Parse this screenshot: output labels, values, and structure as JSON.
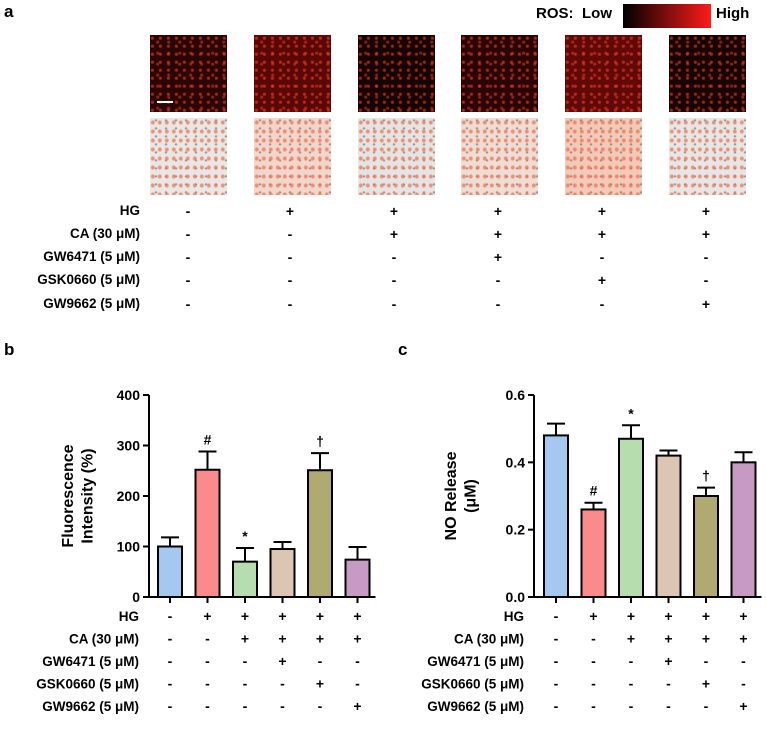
{
  "panel_a": {
    "letter": "a",
    "legend": {
      "title": "ROS:",
      "low": "Low",
      "high": "High"
    },
    "treatment_rows": [
      {
        "label": "HG",
        "signs": [
          "-",
          "+",
          "+",
          "+",
          "+",
          "+"
        ]
      },
      {
        "label": "CA (30 μM)",
        "signs": [
          "-",
          "-",
          "+",
          "+",
          "+",
          "+"
        ]
      },
      {
        "label": "GW6471 (5 μM)",
        "signs": [
          "-",
          "-",
          "-",
          "+",
          "-",
          "-"
        ]
      },
      {
        "label": "GSK0660 (5 μM)",
        "signs": [
          "-",
          "-",
          "-",
          "-",
          "+",
          "-"
        ]
      },
      {
        "label": "GW9662 (5 μM)",
        "signs": [
          "-",
          "-",
          "-",
          "-",
          "-",
          "+"
        ]
      }
    ],
    "colors": {
      "legend_low": "#000000",
      "legend_high": "#ff1a1a"
    }
  },
  "chart_data": [
    {
      "type": "bar",
      "panel": "b",
      "ylabel": "Fluorescence Intensity (%)",
      "ylim": [
        0,
        400
      ],
      "yticks": [
        "0",
        "100",
        "200",
        "300",
        "400"
      ],
      "values": [
        100,
        252,
        70,
        95,
        251,
        74
      ],
      "errors": [
        18,
        36,
        27,
        14,
        34,
        25
      ],
      "annotations": [
        "",
        "#",
        "*",
        "",
        "†",
        ""
      ],
      "colors": [
        "#a4c8f0",
        "#fb8a8d",
        "#b5ddae",
        "#dcc5b3",
        "#b0aa72",
        "#c79ac4"
      ],
      "treatment_rows": [
        {
          "label": "HG",
          "signs": [
            "-",
            "+",
            "+",
            "+",
            "+",
            "+"
          ]
        },
        {
          "label": "CA (30 μM)",
          "signs": [
            "-",
            "-",
            "+",
            "+",
            "+",
            "+"
          ]
        },
        {
          "label": "GW6471 (5 μM)",
          "signs": [
            "-",
            "-",
            "-",
            "+",
            "-",
            "-"
          ]
        },
        {
          "label": "GSK0660 (5 μM)",
          "signs": [
            "-",
            "-",
            "-",
            "-",
            "+",
            "-"
          ]
        },
        {
          "label": "GW9662 (5 μM)",
          "signs": [
            "-",
            "-",
            "-",
            "-",
            "-",
            "+"
          ]
        }
      ]
    },
    {
      "type": "bar",
      "panel": "c",
      "ylabel": "NO Release (μM)",
      "ylim": [
        0,
        0.6
      ],
      "yticks": [
        "0.0",
        "0.2",
        "0.4",
        "0.6"
      ],
      "values": [
        0.48,
        0.26,
        0.47,
        0.42,
        0.3,
        0.4
      ],
      "errors": [
        0.035,
        0.02,
        0.04,
        0.015,
        0.025,
        0.03
      ],
      "annotations": [
        "",
        "#",
        "*",
        "",
        "†",
        ""
      ],
      "colors": [
        "#a4c8f0",
        "#fb8a8d",
        "#b5ddae",
        "#dcc5b3",
        "#b0aa72",
        "#c79ac4"
      ],
      "treatment_rows": [
        {
          "label": "HG",
          "signs": [
            "-",
            "+",
            "+",
            "+",
            "+",
            "+"
          ]
        },
        {
          "label": "CA (30 μM)",
          "signs": [
            "-",
            "-",
            "+",
            "+",
            "+",
            "+"
          ]
        },
        {
          "label": "GW6471 (5 μM)",
          "signs": [
            "-",
            "-",
            "-",
            "+",
            "-",
            "-"
          ]
        },
        {
          "label": "GSK0660 (5 μM)",
          "signs": [
            "-",
            "-",
            "-",
            "-",
            "+",
            "-"
          ]
        },
        {
          "label": "GW9662 (5 μM)",
          "signs": [
            "-",
            "-",
            "-",
            "-",
            "-",
            "+"
          ]
        }
      ]
    }
  ],
  "panel_b": {
    "letter": "b"
  },
  "panel_c": {
    "letter": "c"
  }
}
